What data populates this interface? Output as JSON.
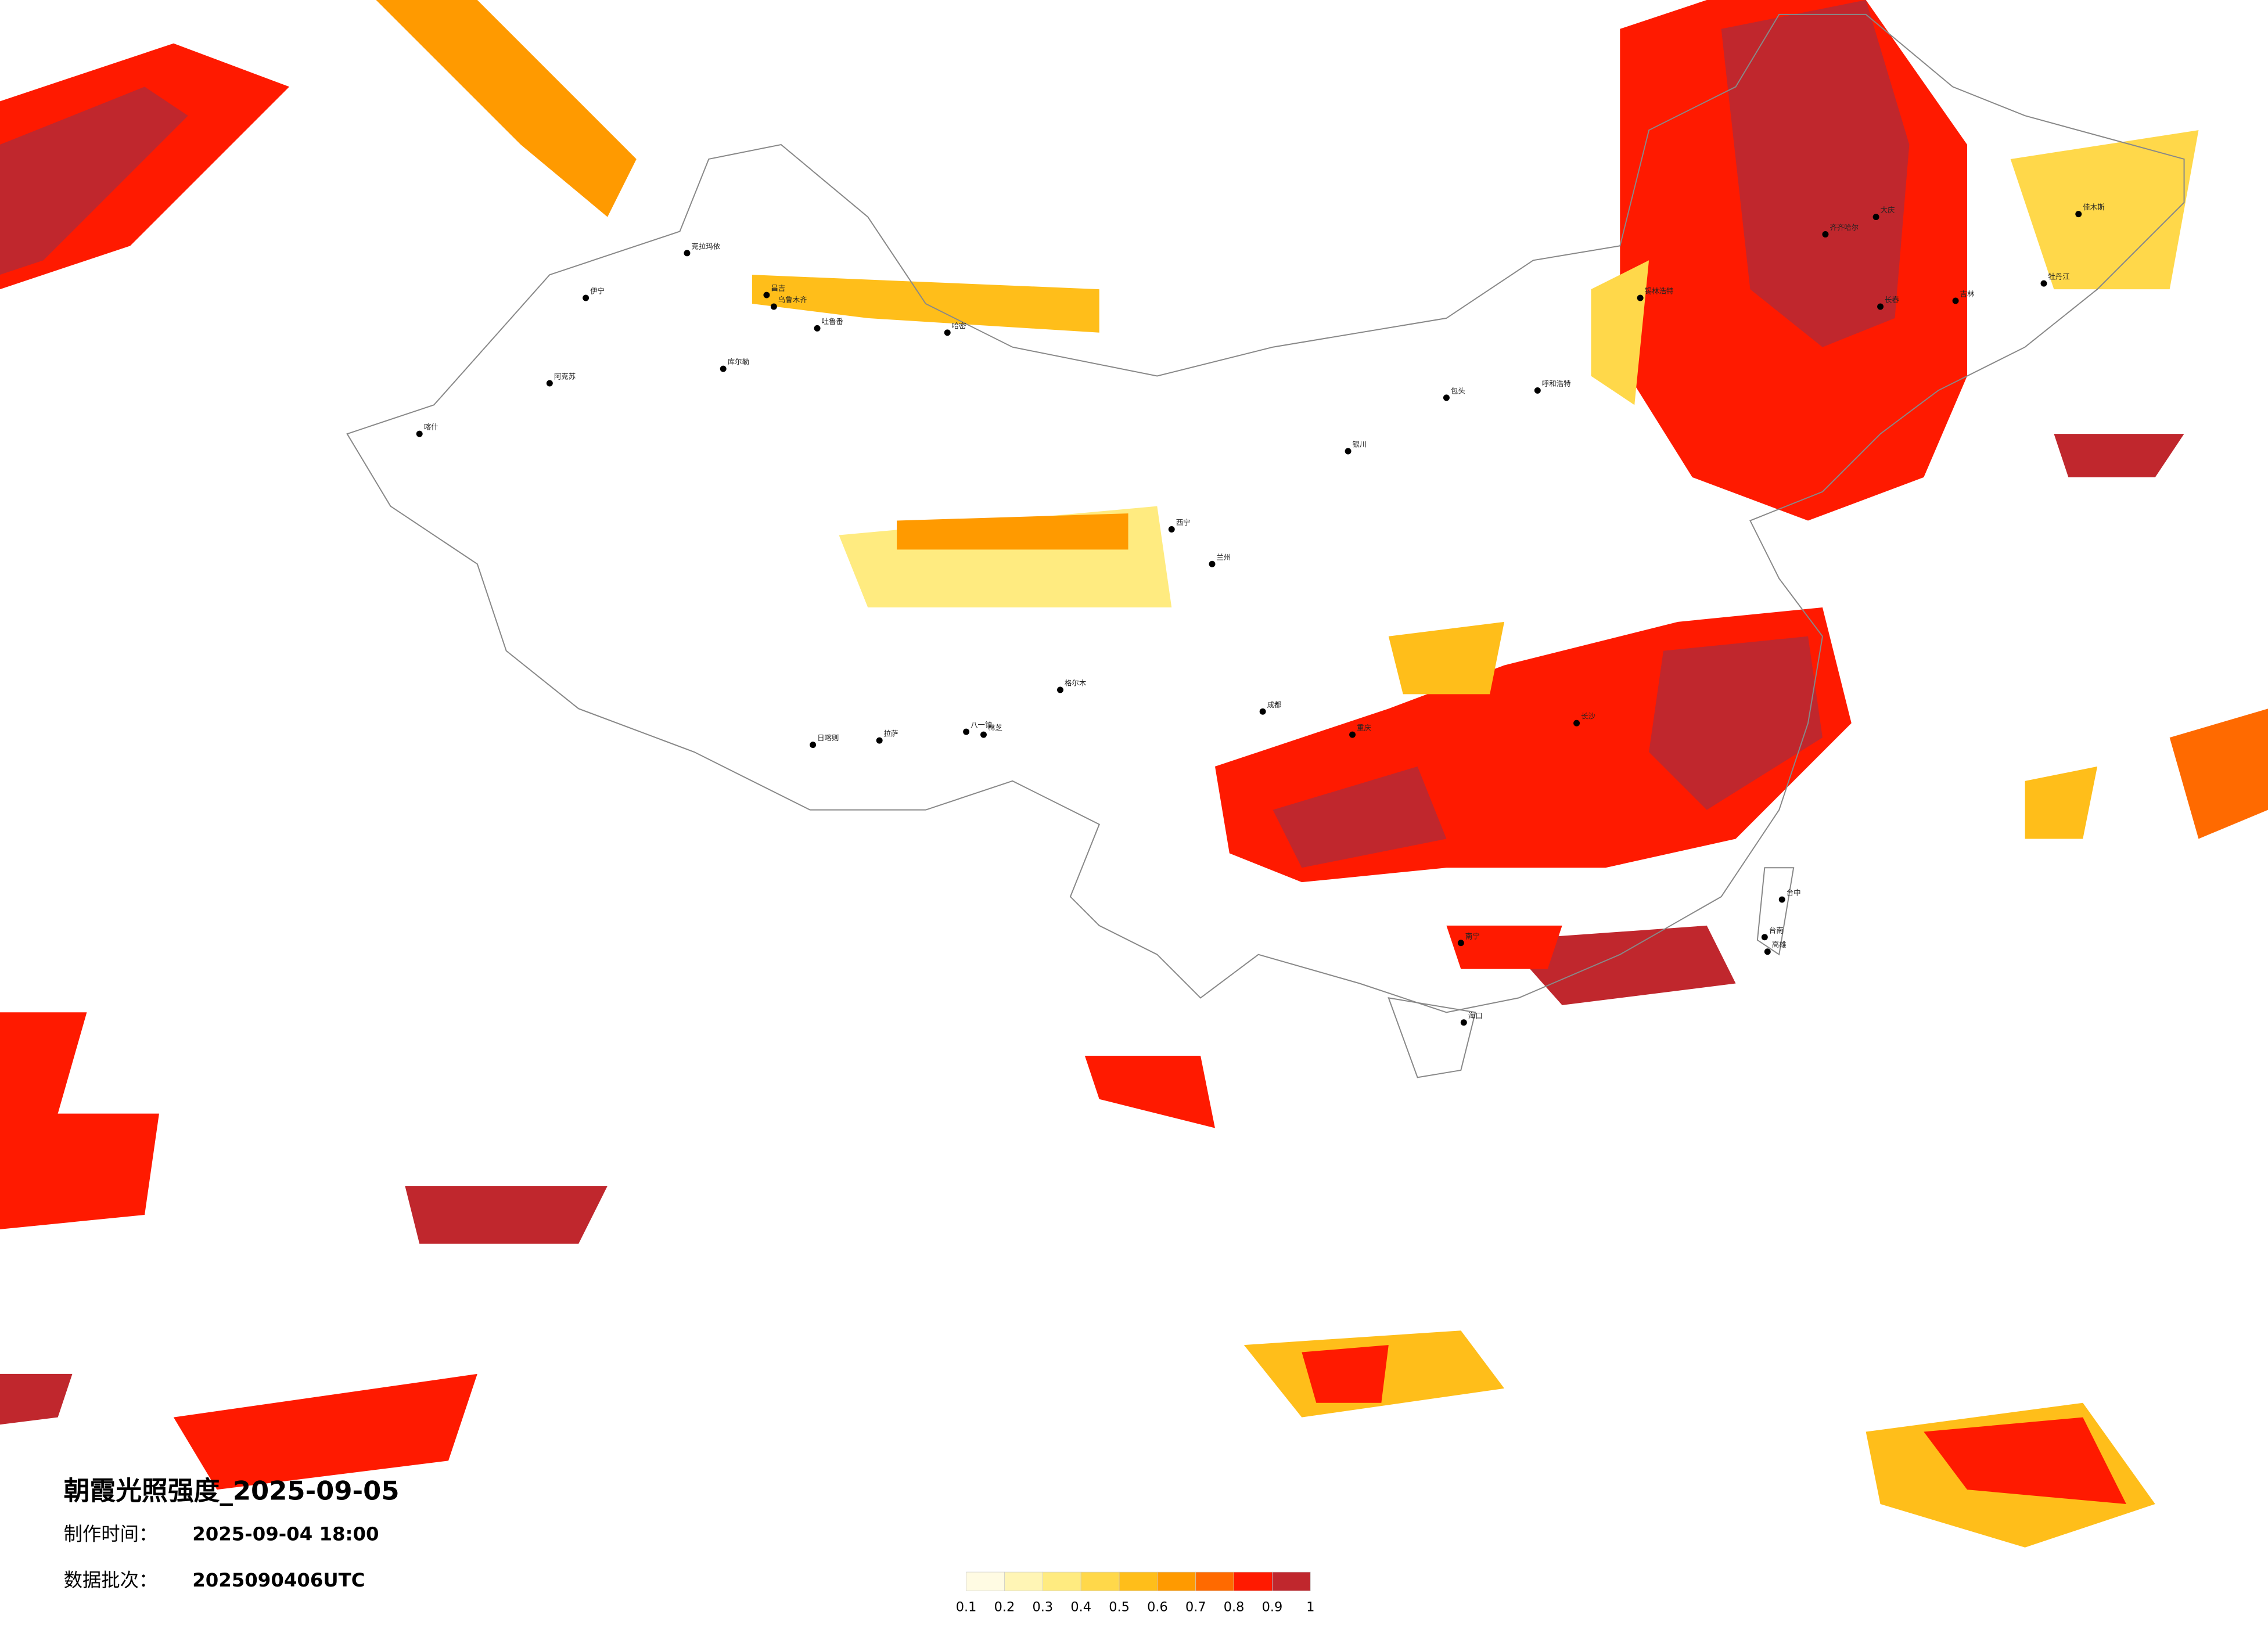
{
  "title": "朝霞光照强度_2025-09-05",
  "made_label": "制作时间：",
  "made_time": "2025-09-04 18:00",
  "batch_label": "数据批次：",
  "batch": "2025090406UTC",
  "legend": {
    "ticks": [
      0.1,
      0.2,
      0.3,
      0.4,
      0.5,
      0.6,
      0.7,
      0.8,
      0.9,
      1
    ],
    "colors": [
      "#fffbe3",
      "#fff5b5",
      "#ffeb80",
      "#ffd84a",
      "#ffbe1a",
      "#ff9a00",
      "#ff6a00",
      "#ff1a00",
      "#c0272d"
    ]
  },
  "cities": [
    "克拉玛依",
    "伊宁",
    "昌吉",
    "乌鲁木齐",
    "吐鲁番",
    "库尔勒",
    "哈密",
    "阿克苏",
    "喀什",
    "格尔木",
    "日喀则",
    "拉萨",
    "八一镇",
    "林芝",
    "西宁",
    "兰州",
    "银川",
    "呼和浩特",
    "包头",
    "成都",
    "重庆",
    "长沙",
    "南宁",
    "海口",
    "台中",
    "台南",
    "高雄",
    "长春",
    "吉林",
    "大庆",
    "齐齐哈尔",
    "佳木斯",
    "牡丹江",
    "锡林浩特"
  ]
}
